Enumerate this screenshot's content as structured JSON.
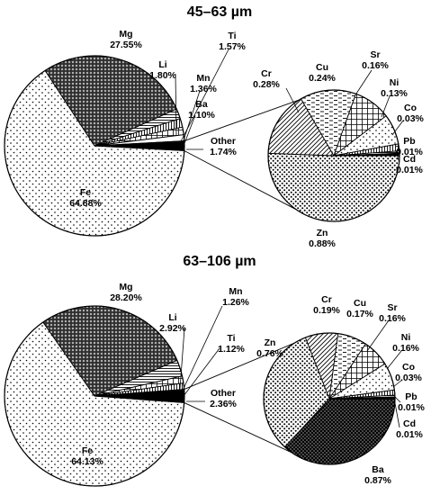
{
  "chart_data": [
    {
      "type": "pie",
      "title": "45–63 µm",
      "main": {
        "slices": [
          {
            "label": "Fe",
            "value": 64.88,
            "value_text": "64.88%",
            "pattern": "dots-sparse"
          },
          {
            "label": "Mg",
            "value": 27.55,
            "value_text": "27.55%",
            "pattern": "dots-dense"
          },
          {
            "label": "Li",
            "value": 1.8,
            "value_text": "1.80%",
            "pattern": "hlines"
          },
          {
            "label": "Ti",
            "value": 1.57,
            "value_text": "1.57%",
            "pattern": "vlines"
          },
          {
            "label": "Mn",
            "value": 1.36,
            "value_text": "1.36%",
            "pattern": "grid"
          },
          {
            "label": "Ba",
            "value": 1.1,
            "value_text": "1.10%",
            "pattern": "white"
          },
          {
            "label": "Other",
            "value": 1.74,
            "value_text": "1.74%",
            "pattern": "black"
          }
        ]
      },
      "detail": {
        "of": "Other",
        "slices": [
          {
            "label": "Zn",
            "value": 0.88,
            "value_text": "0.88%",
            "pattern": "dots-medium"
          },
          {
            "label": "Cr",
            "value": 0.28,
            "value_text": "0.28%",
            "pattern": "diag"
          },
          {
            "label": "Cu",
            "value": 0.24,
            "value_text": "0.24%",
            "pattern": "dashes"
          },
          {
            "label": "Sr",
            "value": 0.16,
            "value_text": "0.16%",
            "pattern": "grid"
          },
          {
            "label": "Ni",
            "value": 0.13,
            "value_text": "0.13%",
            "pattern": "dots-sparse"
          },
          {
            "label": "Co",
            "value": 0.03,
            "value_text": "0.03%",
            "pattern": "vlines"
          },
          {
            "label": "Pb",
            "value": 0.01,
            "value_text": "0.01%",
            "pattern": "hlines"
          },
          {
            "label": "Cd",
            "value": 0.01,
            "value_text": "0.01%",
            "pattern": "black"
          }
        ]
      }
    },
    {
      "type": "pie",
      "title": "63–106 µm",
      "main": {
        "slices": [
          {
            "label": "Fe",
            "value": 64.13,
            "value_text": "64.13%",
            "pattern": "dots-sparse"
          },
          {
            "label": "Mg",
            "value": 28.2,
            "value_text": "28.20%",
            "pattern": "dots-dense"
          },
          {
            "label": "Li",
            "value": 2.92,
            "value_text": "2.92%",
            "pattern": "hlines"
          },
          {
            "label": "Mn",
            "value": 1.26,
            "value_text": "1.26%",
            "pattern": "grid"
          },
          {
            "label": "Ti",
            "value": 1.12,
            "value_text": "1.12%",
            "pattern": "vlines"
          },
          {
            "label": "Other",
            "value": 2.36,
            "value_text": "2.36%",
            "pattern": "black"
          }
        ]
      },
      "detail": {
        "of": "Other",
        "slices": [
          {
            "label": "Ba",
            "value": 0.87,
            "value_text": "0.87%",
            "pattern": "black-dots"
          },
          {
            "label": "Zn",
            "value": 0.76,
            "value_text": "0.76%",
            "pattern": "dots-medium"
          },
          {
            "label": "Cr",
            "value": 0.19,
            "value_text": "0.19%",
            "pattern": "diag"
          },
          {
            "label": "Cu",
            "value": 0.17,
            "value_text": "0.17%",
            "pattern": "dashes"
          },
          {
            "label": "Sr",
            "value": 0.16,
            "value_text": "0.16%",
            "pattern": "grid"
          },
          {
            "label": "Ni",
            "value": 0.16,
            "value_text": "0.16%",
            "pattern": "dots-sparse"
          },
          {
            "label": "Co",
            "value": 0.03,
            "value_text": "0.03%",
            "pattern": "vlines"
          },
          {
            "label": "Pb",
            "value": 0.01,
            "value_text": "0.01%",
            "pattern": "hlines"
          },
          {
            "label": "Cd",
            "value": 0.01,
            "value_text": "0.01%",
            "pattern": "black"
          }
        ]
      }
    }
  ]
}
